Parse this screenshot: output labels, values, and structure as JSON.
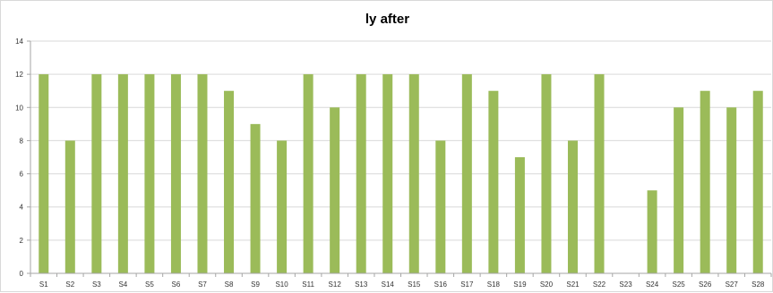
{
  "chart_data": {
    "type": "bar",
    "title": "ly  after",
    "xlabel": "",
    "ylabel": "",
    "ylim": [
      0,
      14
    ],
    "yticks": [
      0,
      2,
      4,
      6,
      8,
      10,
      12,
      14
    ],
    "grid": true,
    "legend": "none",
    "categories": [
      "S1",
      "S2",
      "S3",
      "S4",
      "S5",
      "S6",
      "S7",
      "S8",
      "S9",
      "S10",
      "S11",
      "S12",
      "S13",
      "S14",
      "S15",
      "S16",
      "S17",
      "S18",
      "S19",
      "S20",
      "S21",
      "S22",
      "S23",
      "S24",
      "S25",
      "S26",
      "S27",
      "S28"
    ],
    "values": [
      12,
      8,
      12,
      12,
      12,
      12,
      12,
      11,
      9,
      8,
      12,
      10,
      12,
      12,
      12,
      8,
      12,
      11,
      7,
      12,
      8,
      12,
      0,
      5,
      10,
      11,
      10,
      11
    ],
    "bar_color": "#9bbb59",
    "grid_color": "#d9d9d9",
    "axis_color": "#a6a6a6"
  }
}
